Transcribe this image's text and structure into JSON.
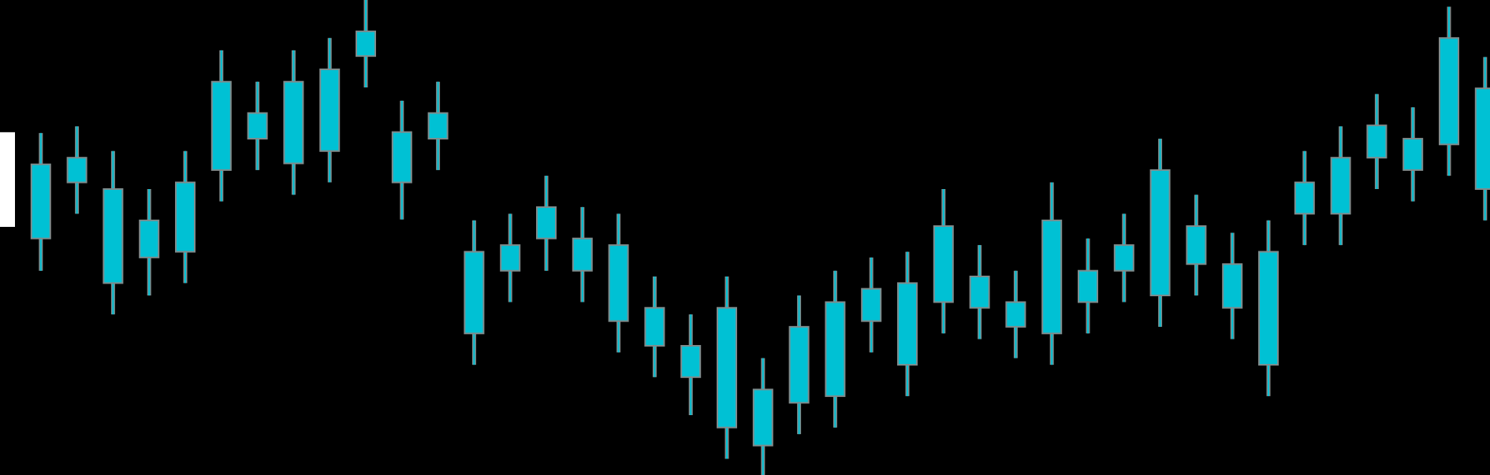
{
  "chart_data": {
    "type": "candlestick",
    "ylim": [
      0,
      500
    ],
    "color": "#00c1d4",
    "border_color": "#7f8c8d",
    "highlight_color": "#ffffff",
    "highlight_index": 0,
    "high": [
      360,
      360,
      367,
      341,
      301,
      341,
      447,
      414,
      447,
      460,
      500,
      394,
      414,
      268,
      275,
      315,
      282,
      275,
      209,
      169,
      209,
      123,
      189,
      215,
      229,
      235,
      301,
      242,
      215,
      308,
      249,
      275,
      354,
      295,
      255,
      268,
      341,
      367,
      401,
      387,
      493,
      440
    ],
    "close": [
      360,
      327,
      334,
      301,
      268,
      308,
      414,
      381,
      414,
      427,
      467,
      361,
      381,
      235,
      242,
      282,
      249,
      242,
      176,
      136,
      176,
      90,
      156,
      182,
      196,
      202,
      262,
      209,
      182,
      268,
      215,
      242,
      321,
      262,
      222,
      235,
      308,
      334,
      368,
      354,
      460,
      407
    ],
    "open": [
      262,
      249,
      308,
      202,
      229,
      235,
      321,
      354,
      328,
      341,
      441,
      308,
      354,
      149,
      215,
      249,
      215,
      162,
      136,
      103,
      50,
      31,
      76,
      83,
      162,
      116,
      182,
      176,
      156,
      149,
      182,
      215,
      189,
      222,
      176,
      116,
      275,
      275,
      334,
      321,
      348,
      301
    ],
    "low": [
      262,
      215,
      275,
      169,
      189,
      202,
      288,
      321,
      295,
      308,
      408,
      269,
      321,
      116,
      182,
      215,
      182,
      129,
      103,
      63,
      17,
      0,
      43,
      50,
      129,
      83,
      149,
      143,
      123,
      116,
      149,
      182,
      156,
      189,
      143,
      83,
      242,
      242,
      301,
      288,
      315,
      268
    ]
  }
}
